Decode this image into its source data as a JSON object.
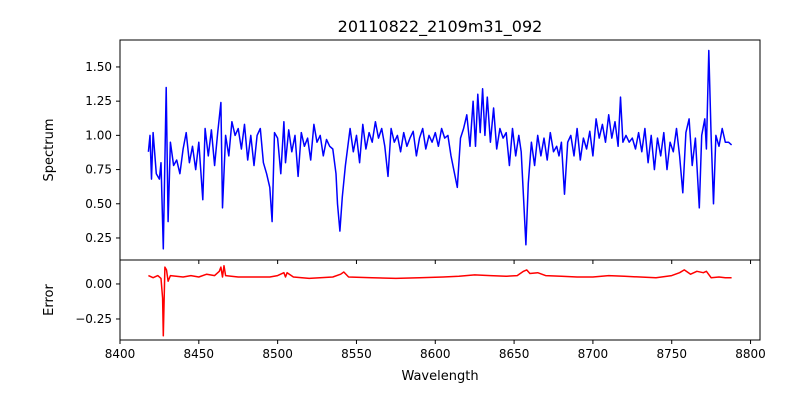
{
  "chart_data": [
    {
      "type": "line",
      "title": "20110822_2109m31_092",
      "ylabel": "Spectrum",
      "xlabel": "",
      "xlim": [
        8400,
        8806
      ],
      "ylim": [
        0.089,
        1.697
      ],
      "xticks": [
        8400,
        8450,
        8500,
        8550,
        8600,
        8650,
        8700,
        8750,
        8800
      ],
      "yticks": [
        0.25,
        0.5,
        0.75,
        1.0,
        1.25,
        1.5
      ],
      "ytick_labels": [
        "0.25",
        "0.50",
        "0.75",
        "1.00",
        "1.25",
        "1.50"
      ],
      "grid": false,
      "series": [
        {
          "name": "Spectrum",
          "color": "#0000ff",
          "points": [
            [
              8418,
              0.88
            ],
            [
              8419,
              1.0
            ],
            [
              8420,
              0.68
            ],
            [
              8421,
              1.02
            ],
            [
              8423,
              0.72
            ],
            [
              8425,
              0.68
            ],
            [
              8426,
              0.8
            ],
            [
              8427.5,
              0.17
            ],
            [
              8429.3,
              1.35
            ],
            [
              8430.5,
              0.37
            ],
            [
              8432,
              0.95
            ],
            [
              8434,
              0.78
            ],
            [
              8436,
              0.82
            ],
            [
              8438,
              0.72
            ],
            [
              8440,
              0.9
            ],
            [
              8442,
              1.02
            ],
            [
              8444,
              0.8
            ],
            [
              8446,
              0.92
            ],
            [
              8448,
              0.75
            ],
            [
              8450,
              0.95
            ],
            [
              8452.5,
              0.53
            ],
            [
              8454,
              1.05
            ],
            [
              8456,
              0.85
            ],
            [
              8458,
              1.04
            ],
            [
              8460,
              0.78
            ],
            [
              8462,
              1.02
            ],
            [
              8464,
              1.24
            ],
            [
              8465,
              0.47
            ],
            [
              8467,
              1.0
            ],
            [
              8469,
              0.85
            ],
            [
              8471,
              1.1
            ],
            [
              8473,
              1.0
            ],
            [
              8475,
              1.05
            ],
            [
              8477,
              0.9
            ],
            [
              8479,
              1.08
            ],
            [
              8481,
              0.82
            ],
            [
              8483,
              1.0
            ],
            [
              8485,
              0.78
            ],
            [
              8487,
              1.0
            ],
            [
              8489,
              1.05
            ],
            [
              8491,
              0.8
            ],
            [
              8493,
              0.72
            ],
            [
              8495,
              0.62
            ],
            [
              8496.5,
              0.37
            ],
            [
              8498,
              1.02
            ],
            [
              8500,
              0.98
            ],
            [
              8502,
              0.72
            ],
            [
              8504,
              1.1
            ],
            [
              8505,
              0.8
            ],
            [
              8507,
              1.04
            ],
            [
              8509,
              0.88
            ],
            [
              8511,
              1.0
            ],
            [
              8513,
              0.7
            ],
            [
              8515,
              1.02
            ],
            [
              8517,
              0.92
            ],
            [
              8519,
              0.98
            ],
            [
              8521,
              0.82
            ],
            [
              8523,
              1.08
            ],
            [
              8525,
              0.95
            ],
            [
              8527,
              1.0
            ],
            [
              8529,
              0.85
            ],
            [
              8531,
              0.97
            ],
            [
              8533,
              0.92
            ],
            [
              8535,
              0.9
            ],
            [
              8537,
              0.72
            ],
            [
              8538,
              0.5
            ],
            [
              8539.5,
              0.3
            ],
            [
              8541,
              0.55
            ],
            [
              8543,
              0.78
            ],
            [
              8546,
              1.05
            ],
            [
              8548,
              0.88
            ],
            [
              8550,
              1.0
            ],
            [
              8552,
              0.8
            ],
            [
              8554,
              1.08
            ],
            [
              8556,
              0.9
            ],
            [
              8558,
              1.02
            ],
            [
              8560,
              0.95
            ],
            [
              8562,
              1.1
            ],
            [
              8564,
              0.98
            ],
            [
              8566,
              1.05
            ],
            [
              8568,
              0.92
            ],
            [
              8570,
              0.7
            ],
            [
              8572,
              1.05
            ],
            [
              8574,
              0.95
            ],
            [
              8576,
              1.0
            ],
            [
              8578,
              0.88
            ],
            [
              8580,
              1.02
            ],
            [
              8582,
              0.92
            ],
            [
              8584,
              0.98
            ],
            [
              8586,
              1.03
            ],
            [
              8588,
              0.85
            ],
            [
              8590,
              0.98
            ],
            [
              8592,
              1.05
            ],
            [
              8594,
              0.9
            ],
            [
              8596,
              1.0
            ],
            [
              8598,
              0.95
            ],
            [
              8600,
              1.02
            ],
            [
              8602,
              0.92
            ],
            [
              8604,
              1.05
            ],
            [
              8606,
              0.98
            ],
            [
              8608,
              1.0
            ],
            [
              8610,
              0.85
            ],
            [
              8614,
              0.62
            ],
            [
              8616,
              0.98
            ],
            [
              8618,
              1.05
            ],
            [
              8620,
              1.15
            ],
            [
              8622,
              0.92
            ],
            [
              8624,
              1.25
            ],
            [
              8625.5,
              0.92
            ],
            [
              8627,
              1.3
            ],
            [
              8628.5,
              1.02
            ],
            [
              8630,
              1.34
            ],
            [
              8631.5,
              1.0
            ],
            [
              8633,
              1.28
            ],
            [
              8635,
              0.95
            ],
            [
              8637,
              1.2
            ],
            [
              8639,
              0.9
            ],
            [
              8641,
              1.05
            ],
            [
              8643,
              0.98
            ],
            [
              8645,
              1.02
            ],
            [
              8647,
              0.78
            ],
            [
              8649,
              1.05
            ],
            [
              8651,
              0.85
            ],
            [
              8653,
              1.0
            ],
            [
              8654.5,
              0.88
            ],
            [
              8656,
              0.55
            ],
            [
              8657.5,
              0.2
            ],
            [
              8659,
              0.65
            ],
            [
              8661,
              0.95
            ],
            [
              8663,
              0.78
            ],
            [
              8665,
              1.0
            ],
            [
              8667,
              0.85
            ],
            [
              8669,
              0.98
            ],
            [
              8671,
              0.82
            ],
            [
              8673,
              1.02
            ],
            [
              8675,
              0.88
            ],
            [
              8677,
              0.92
            ],
            [
              8678.5,
              0.85
            ],
            [
              8680,
              0.95
            ],
            [
              8682,
              0.57
            ],
            [
              8684,
              0.95
            ],
            [
              8686,
              1.0
            ],
            [
              8688,
              0.85
            ],
            [
              8690,
              1.05
            ],
            [
              8692,
              0.82
            ],
            [
              8694,
              0.98
            ],
            [
              8696,
              0.9
            ],
            [
              8698,
              1.03
            ],
            [
              8700,
              0.85
            ],
            [
              8702,
              1.12
            ],
            [
              8704,
              0.98
            ],
            [
              8706,
              1.08
            ],
            [
              8708,
              0.95
            ],
            [
              8710,
              1.15
            ],
            [
              8712,
              0.98
            ],
            [
              8714,
              1.1
            ],
            [
              8716,
              0.92
            ],
            [
              8717.5,
              1.28
            ],
            [
              8719,
              0.95
            ],
            [
              8721,
              1.0
            ],
            [
              8723,
              0.95
            ],
            [
              8725,
              0.98
            ],
            [
              8727,
              0.9
            ],
            [
              8729,
              1.02
            ],
            [
              8731,
              0.88
            ],
            [
              8733,
              1.05
            ],
            [
              8735,
              0.8
            ],
            [
              8737,
              1.0
            ],
            [
              8739,
              0.75
            ],
            [
              8741,
              0.98
            ],
            [
              8743,
              0.85
            ],
            [
              8745,
              1.02
            ],
            [
              8747,
              0.75
            ],
            [
              8749,
              0.95
            ],
            [
              8751,
              0.88
            ],
            [
              8753,
              1.05
            ],
            [
              8755,
              0.85
            ],
            [
              8757,
              0.58
            ],
            [
              8759,
              1.02
            ],
            [
              8761,
              1.12
            ],
            [
              8763,
              0.78
            ],
            [
              8765,
              0.98
            ],
            [
              8767.5,
              0.47
            ],
            [
              8769,
              1.0
            ],
            [
              8771,
              1.12
            ],
            [
              8772,
              0.9
            ],
            [
              8773.5,
              1.62
            ],
            [
              8775,
              1.0
            ],
            [
              8776.5,
              0.5
            ],
            [
              8778,
              1.0
            ],
            [
              8780,
              0.92
            ],
            [
              8782,
              1.05
            ],
            [
              8784,
              0.95
            ],
            [
              8786,
              0.95
            ],
            [
              8788,
              0.93
            ]
          ]
        }
      ]
    },
    {
      "type": "line",
      "title": "",
      "ylabel": "Error",
      "xlabel": "Wavelength",
      "xlim": [
        8400,
        8806
      ],
      "ylim": [
        -0.4,
        0.171
      ],
      "xticks": [
        8400,
        8450,
        8500,
        8550,
        8600,
        8650,
        8700,
        8750,
        8800
      ],
      "xtick_labels": [
        "8400",
        "8450",
        "8500",
        "8550",
        "8600",
        "8650",
        "8700",
        "8750",
        "8800"
      ],
      "yticks": [
        0.0,
        -0.25
      ],
      "ytick_labels": [
        "0.00",
        "−0.25"
      ],
      "grid": false,
      "series": [
        {
          "name": "Error",
          "color": "#ff0000",
          "points": [
            [
              8418,
              0.06
            ],
            [
              8421,
              0.045
            ],
            [
              8424,
              0.06
            ],
            [
              8426,
              0.04
            ],
            [
              8427,
              -0.1
            ],
            [
              8427.5,
              -0.37
            ],
            [
              8428.5,
              0.12
            ],
            [
              8429.5,
              0.1
            ],
            [
              8430.5,
              0.02
            ],
            [
              8432,
              0.06
            ],
            [
              8440,
              0.05
            ],
            [
              8445,
              0.06
            ],
            [
              8450,
              0.05
            ],
            [
              8455,
              0.07
            ],
            [
              8460,
              0.06
            ],
            [
              8463,
              0.09
            ],
            [
              8464,
              0.12
            ],
            [
              8465,
              0.05
            ],
            [
              8466,
              0.13
            ],
            [
              8467,
              0.06
            ],
            [
              8475,
              0.05
            ],
            [
              8485,
              0.05
            ],
            [
              8495,
              0.05
            ],
            [
              8500,
              0.06
            ],
            [
              8504,
              0.08
            ],
            [
              8505,
              0.05
            ],
            [
              8506,
              0.08
            ],
            [
              8510,
              0.05
            ],
            [
              8520,
              0.04
            ],
            [
              8535,
              0.05
            ],
            [
              8540,
              0.07
            ],
            [
              8542,
              0.085
            ],
            [
              8545,
              0.05
            ],
            [
              8560,
              0.045
            ],
            [
              8575,
              0.04
            ],
            [
              8590,
              0.045
            ],
            [
              8605,
              0.05
            ],
            [
              8615,
              0.055
            ],
            [
              8625,
              0.065
            ],
            [
              8635,
              0.06
            ],
            [
              8645,
              0.055
            ],
            [
              8652,
              0.06
            ],
            [
              8656,
              0.09
            ],
            [
              8658,
              0.1
            ],
            [
              8660,
              0.075
            ],
            [
              8665,
              0.08
            ],
            [
              8670,
              0.06
            ],
            [
              8680,
              0.055
            ],
            [
              8690,
              0.05
            ],
            [
              8700,
              0.05
            ],
            [
              8710,
              0.06
            ],
            [
              8720,
              0.055
            ],
            [
              8730,
              0.05
            ],
            [
              8740,
              0.045
            ],
            [
              8750,
              0.06
            ],
            [
              8755,
              0.08
            ],
            [
              8758,
              0.1
            ],
            [
              8762,
              0.07
            ],
            [
              8766,
              0.09
            ],
            [
              8770,
              0.08
            ],
            [
              8772,
              0.09
            ],
            [
              8775,
              0.045
            ],
            [
              8780,
              0.05
            ],
            [
              8784,
              0.045
            ],
            [
              8788,
              0.045
            ]
          ]
        }
      ]
    }
  ]
}
